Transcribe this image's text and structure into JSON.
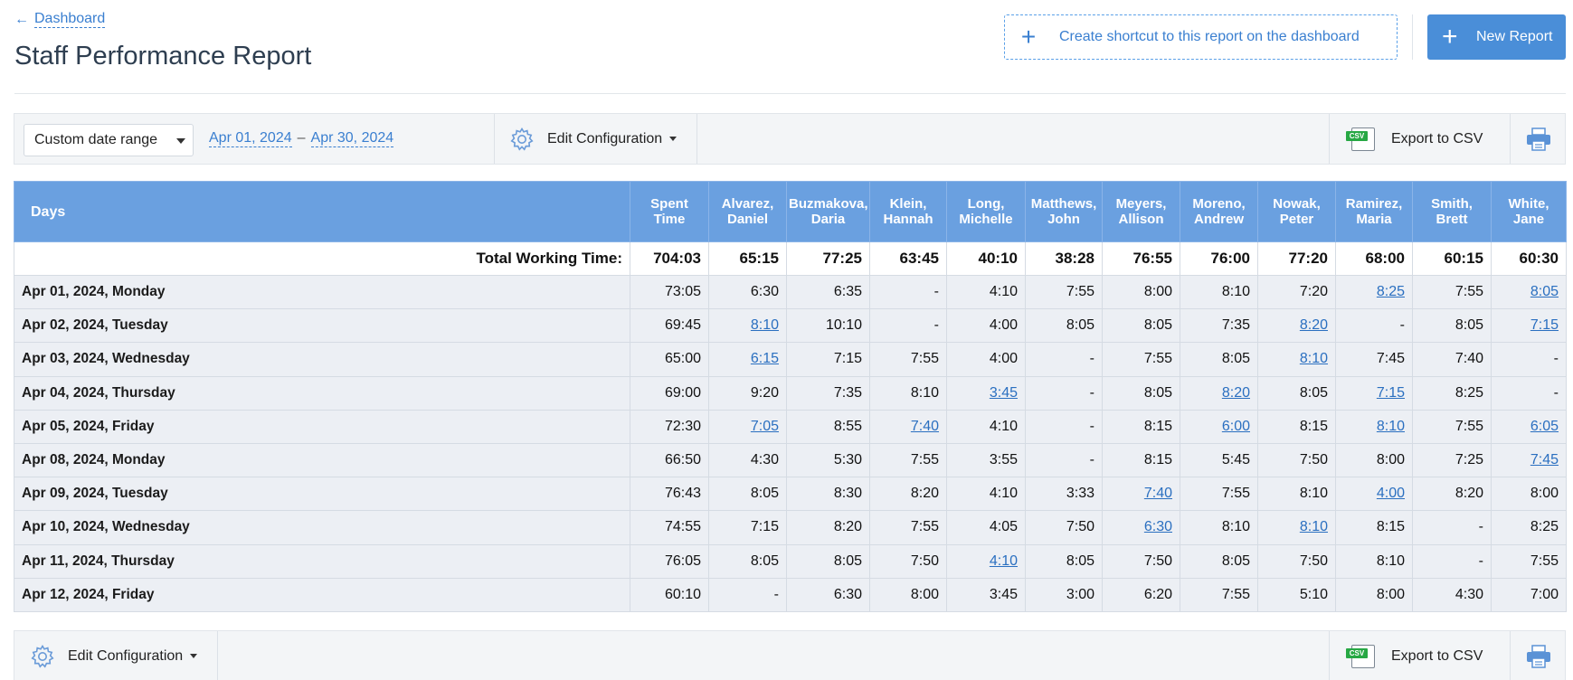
{
  "nav": {
    "back_label": "Dashboard"
  },
  "page_title": "Staff Performance Report",
  "header": {
    "shortcut_label": "Create shortcut to this report on the dashboard",
    "new_report_label": "New Report"
  },
  "toolbar": {
    "date_select_value": "Custom date range",
    "date_from": "Apr 01, 2024",
    "date_sep": "–",
    "date_to": "Apr 30, 2024",
    "edit_config_label": "Edit Configuration",
    "export_label": "Export to CSV",
    "csv_tag": "CSV"
  },
  "colors": {
    "header_bg": "#6aa0e0",
    "link": "#2a6fc0",
    "accent": "#4a8ed8",
    "csv_green": "#27a844"
  },
  "table": {
    "days_header": "Days",
    "columns": [
      {
        "l1": "Spent",
        "l2": "Time"
      },
      {
        "l1": "Alvarez,",
        "l2": "Daniel"
      },
      {
        "l1": "Buzmakova,",
        "l2": "Daria"
      },
      {
        "l1": "Klein,",
        "l2": "Hannah"
      },
      {
        "l1": "Long,",
        "l2": "Michelle"
      },
      {
        "l1": "Matthews,",
        "l2": "John"
      },
      {
        "l1": "Meyers,",
        "l2": "Allison"
      },
      {
        "l1": "Moreno,",
        "l2": "Andrew"
      },
      {
        "l1": "Nowak,",
        "l2": "Peter"
      },
      {
        "l1": "Ramirez,",
        "l2": "Maria"
      },
      {
        "l1": "Smith,",
        "l2": "Brett"
      },
      {
        "l1": "White,",
        "l2": "Jane"
      }
    ],
    "total_label": "Total Working Time:",
    "totals": [
      "704:03",
      "65:15",
      "77:25",
      "63:45",
      "40:10",
      "38:28",
      "76:55",
      "76:00",
      "77:20",
      "68:00",
      "60:15",
      "60:30"
    ],
    "rows": [
      {
        "day": "Apr 01, 2024, Monday",
        "cells": [
          {
            "v": "73:05"
          },
          {
            "v": "6:30"
          },
          {
            "v": "6:35"
          },
          {
            "v": "-"
          },
          {
            "v": "4:10"
          },
          {
            "v": "7:55"
          },
          {
            "v": "8:00"
          },
          {
            "v": "8:10"
          },
          {
            "v": "7:20"
          },
          {
            "v": "8:25",
            "link": true
          },
          {
            "v": "7:55"
          },
          {
            "v": "8:05",
            "link": true
          }
        ]
      },
      {
        "day": "Apr 02, 2024, Tuesday",
        "cells": [
          {
            "v": "69:45"
          },
          {
            "v": "8:10",
            "link": true
          },
          {
            "v": "10:10"
          },
          {
            "v": "-"
          },
          {
            "v": "4:00"
          },
          {
            "v": "8:05"
          },
          {
            "v": "8:05"
          },
          {
            "v": "7:35"
          },
          {
            "v": "8:20",
            "link": true
          },
          {
            "v": "-"
          },
          {
            "v": "8:05"
          },
          {
            "v": "7:15",
            "link": true
          }
        ]
      },
      {
        "day": "Apr 03, 2024, Wednesday",
        "cells": [
          {
            "v": "65:00"
          },
          {
            "v": "6:15",
            "link": true
          },
          {
            "v": "7:15"
          },
          {
            "v": "7:55"
          },
          {
            "v": "4:00"
          },
          {
            "v": "-"
          },
          {
            "v": "7:55"
          },
          {
            "v": "8:05"
          },
          {
            "v": "8:10",
            "link": true
          },
          {
            "v": "7:45"
          },
          {
            "v": "7:40"
          },
          {
            "v": "-"
          }
        ]
      },
      {
        "day": "Apr 04, 2024, Thursday",
        "cells": [
          {
            "v": "69:00"
          },
          {
            "v": "9:20"
          },
          {
            "v": "7:35"
          },
          {
            "v": "8:10"
          },
          {
            "v": "3:45",
            "link": true
          },
          {
            "v": "-"
          },
          {
            "v": "8:05"
          },
          {
            "v": "8:20",
            "link": true
          },
          {
            "v": "8:05"
          },
          {
            "v": "7:15",
            "link": true
          },
          {
            "v": "8:25"
          },
          {
            "v": "-"
          }
        ]
      },
      {
        "day": "Apr 05, 2024, Friday",
        "cells": [
          {
            "v": "72:30"
          },
          {
            "v": "7:05",
            "link": true
          },
          {
            "v": "8:55"
          },
          {
            "v": "7:40",
            "link": true
          },
          {
            "v": "4:10"
          },
          {
            "v": "-"
          },
          {
            "v": "8:15"
          },
          {
            "v": "6:00",
            "link": true
          },
          {
            "v": "8:15"
          },
          {
            "v": "8:10",
            "link": true
          },
          {
            "v": "7:55"
          },
          {
            "v": "6:05",
            "link": true
          }
        ]
      },
      {
        "day": "Apr 08, 2024, Monday",
        "cells": [
          {
            "v": "66:50"
          },
          {
            "v": "4:30"
          },
          {
            "v": "5:30"
          },
          {
            "v": "7:55"
          },
          {
            "v": "3:55"
          },
          {
            "v": "-"
          },
          {
            "v": "8:15"
          },
          {
            "v": "5:45"
          },
          {
            "v": "7:50"
          },
          {
            "v": "8:00"
          },
          {
            "v": "7:25"
          },
          {
            "v": "7:45",
            "link": true
          }
        ]
      },
      {
        "day": "Apr 09, 2024, Tuesday",
        "cells": [
          {
            "v": "76:43"
          },
          {
            "v": "8:05"
          },
          {
            "v": "8:30"
          },
          {
            "v": "8:20"
          },
          {
            "v": "4:10"
          },
          {
            "v": "3:33"
          },
          {
            "v": "7:40",
            "link": true
          },
          {
            "v": "7:55"
          },
          {
            "v": "8:10"
          },
          {
            "v": "4:00",
            "link": true
          },
          {
            "v": "8:20"
          },
          {
            "v": "8:00"
          }
        ]
      },
      {
        "day": "Apr 10, 2024, Wednesday",
        "cells": [
          {
            "v": "74:55"
          },
          {
            "v": "7:15"
          },
          {
            "v": "8:20"
          },
          {
            "v": "7:55"
          },
          {
            "v": "4:05"
          },
          {
            "v": "7:50"
          },
          {
            "v": "6:30",
            "link": true
          },
          {
            "v": "8:10"
          },
          {
            "v": "8:10",
            "link": true
          },
          {
            "v": "8:15"
          },
          {
            "v": "-"
          },
          {
            "v": "8:25"
          }
        ]
      },
      {
        "day": "Apr 11, 2024, Thursday",
        "cells": [
          {
            "v": "76:05"
          },
          {
            "v": "8:05"
          },
          {
            "v": "8:05"
          },
          {
            "v": "7:50"
          },
          {
            "v": "4:10",
            "link": true
          },
          {
            "v": "8:05"
          },
          {
            "v": "7:50"
          },
          {
            "v": "8:05"
          },
          {
            "v": "7:50"
          },
          {
            "v": "8:10"
          },
          {
            "v": "-"
          },
          {
            "v": "7:55"
          }
        ]
      },
      {
        "day": "Apr 12, 2024, Friday",
        "cells": [
          {
            "v": "60:10"
          },
          {
            "v": "-"
          },
          {
            "v": "6:30"
          },
          {
            "v": "8:00"
          },
          {
            "v": "3:45"
          },
          {
            "v": "3:00"
          },
          {
            "v": "6:20"
          },
          {
            "v": "7:55"
          },
          {
            "v": "5:10"
          },
          {
            "v": "8:00"
          },
          {
            "v": "4:30"
          },
          {
            "v": "7:00"
          }
        ]
      }
    ]
  }
}
